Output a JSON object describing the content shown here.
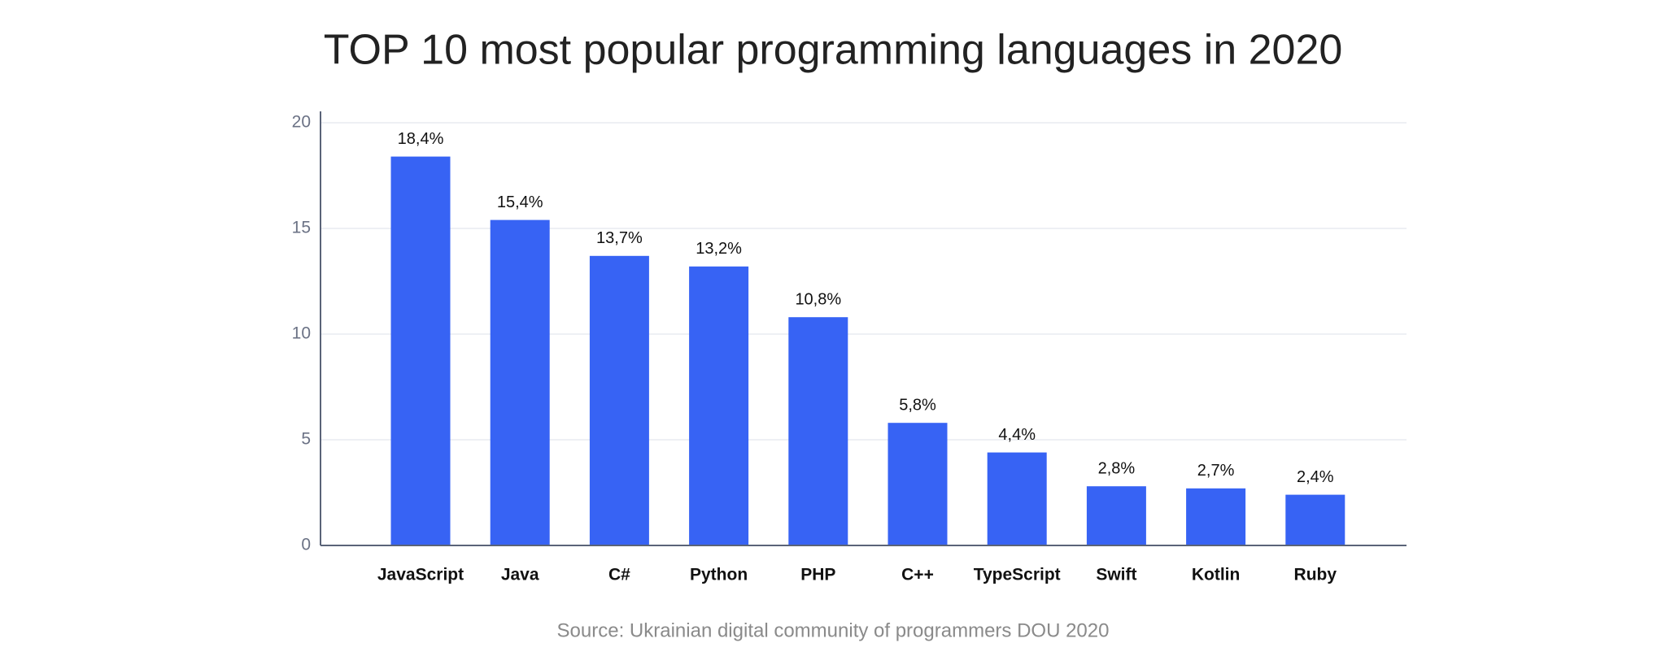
{
  "chart_data": {
    "type": "bar",
    "title": "TOP 10 most popular programming languages in 2020",
    "source": "Source: Ukrainian digital community of programmers DOU 2020",
    "categories": [
      "JavaScript",
      "Java",
      "C#",
      "Python",
      "PHP",
      "C++",
      "TypeScript",
      "Swift",
      "Kotlin",
      "Ruby"
    ],
    "values": [
      18.4,
      15.4,
      13.7,
      13.2,
      10.8,
      5.8,
      4.4,
      2.8,
      2.7,
      2.4
    ],
    "value_labels": [
      "18,4%",
      "15,4%",
      "13,7%",
      "13,2%",
      "10,8%",
      "5,8%",
      "4,4%",
      "2,8%",
      "2,7%",
      "2,4%"
    ],
    "color": "#3763f4",
    "ylim": [
      0,
      20
    ],
    "yticks": [
      0,
      5,
      10,
      15,
      20
    ],
    "grid": true
  }
}
